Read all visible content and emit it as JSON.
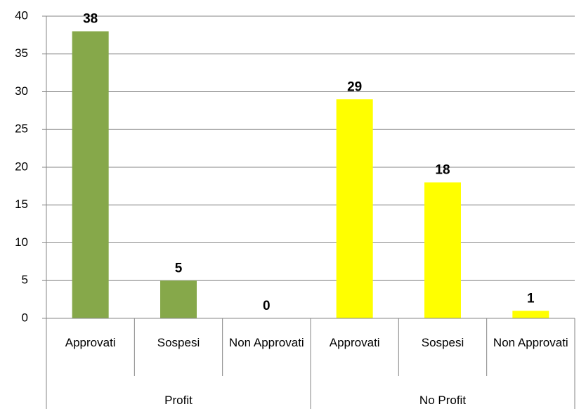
{
  "chart_data": {
    "type": "bar",
    "groups": [
      {
        "name": "Profit",
        "color": "#86a84a",
        "categories": [
          "Approvati",
          "Sospesi",
          "Non Approvati"
        ],
        "values": [
          38,
          5,
          0
        ]
      },
      {
        "name": "No Profit",
        "color": "#ffff00",
        "categories": [
          "Approvati",
          "Sospesi",
          "Non Approvati"
        ],
        "values": [
          29,
          18,
          1
        ]
      }
    ],
    "ylim": [
      0,
      40
    ],
    "yticks": [
      0,
      5,
      10,
      15,
      20,
      25,
      30,
      35,
      40
    ],
    "grid": true
  }
}
